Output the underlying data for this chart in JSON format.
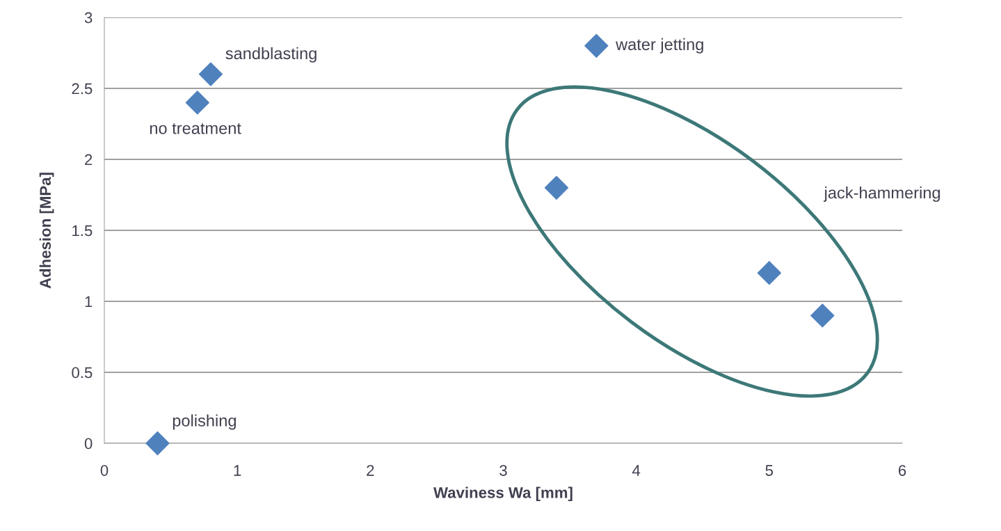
{
  "chart_data": {
    "type": "scatter",
    "xlabel": "Waviness Wa [mm]",
    "ylabel": "Adhesion [MPa]",
    "series": [
      {
        "color": "#4f81bd",
        "x": [
          0.4,
          0.7,
          0.8,
          3.7,
          3.4,
          5.0,
          5.4
        ],
        "values": [
          0,
          2.4,
          2.6,
          2.8,
          1.8,
          1.2,
          0.9
        ]
      }
    ],
    "xlim": [
      0,
      6
    ],
    "xticks": [
      0,
      1,
      2,
      3,
      4,
      5,
      6
    ],
    "ylim": [
      0,
      3
    ],
    "yticks": [
      0,
      0.5,
      1,
      1.5,
      2,
      2.5,
      3
    ],
    "grid": "y",
    "marker": "diamond",
    "legend": false,
    "annotations": [
      {
        "text": "polishing",
        "x": 0.4,
        "y": 0
      },
      {
        "text": "no treatment",
        "x": 0.7,
        "y": 2.4
      },
      {
        "text": "sandblasting",
        "x": 0.8,
        "y": 2.6
      },
      {
        "text": "water jetting",
        "x": 3.7,
        "y": 2.8
      },
      "jack-hammering"
    ]
  }
}
